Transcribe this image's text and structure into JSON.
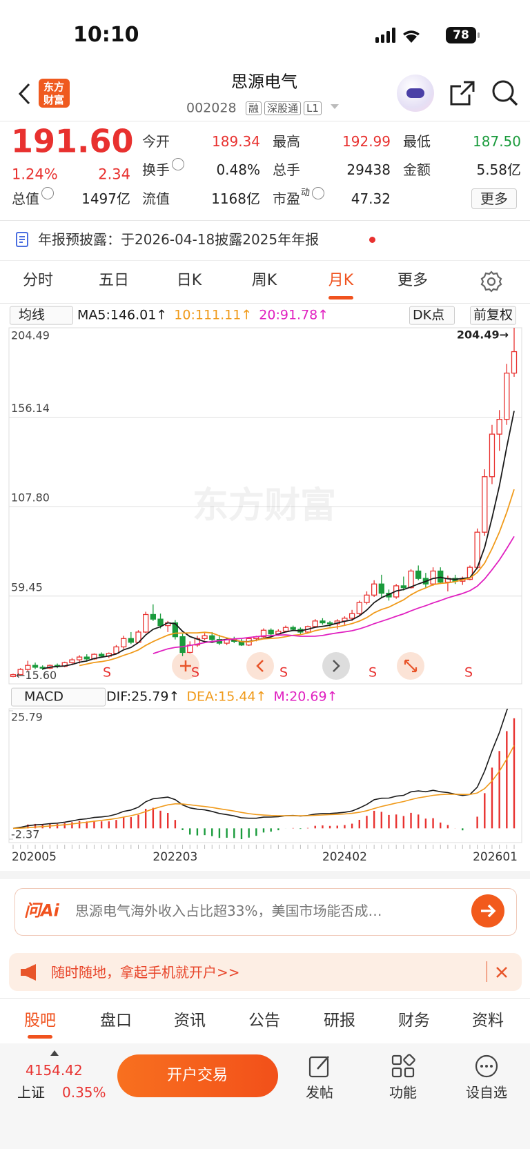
{
  "status_bar": {
    "time": "10:10",
    "battery": "78"
  },
  "header": {
    "logo": [
      "东方",
      "财富"
    ],
    "title": "思源电气",
    "code": "002028",
    "badges": [
      "融",
      "深股通",
      "L1"
    ]
  },
  "quote": {
    "price": "191.60",
    "change_pct": "1.24%",
    "change": "2.34",
    "fields": [
      {
        "label": "今开",
        "value": "189.34",
        "color": "#e8312f"
      },
      {
        "label": "最高",
        "value": "192.99",
        "color": "#e8312f"
      },
      {
        "label": "最低",
        "value": "187.50",
        "color": "#1a9b3c"
      },
      {
        "label": "换手",
        "value": "0.48%",
        "info": true
      },
      {
        "label": "总手",
        "value": "29438"
      },
      {
        "label": "金额",
        "value": "5.58亿"
      },
      {
        "label": "总值",
        "value": "1497亿",
        "info": true
      },
      {
        "label": "流值",
        "value": "1168亿"
      },
      {
        "label": "市盈",
        "sup": "动",
        "value": "47.32",
        "info": true
      }
    ],
    "more_button": "更多"
  },
  "notice": "年报预披露：于2026-04-18披露2025年年报",
  "tabs": [
    "分时",
    "五日",
    "日K",
    "周K",
    "月K",
    "更多"
  ],
  "active_tab": 4,
  "indicators": {
    "ma_selector": "均线",
    "ma": [
      "MA5:146.01↑",
      "10:111.11↑",
      "20:91.78↑"
    ],
    "dk": "DK点",
    "adjust": "前复权",
    "macd_selector": "MACD",
    "macd": [
      "DIF:25.79↑",
      "DEA:15.44↑",
      "M:20.69↑"
    ]
  },
  "watermark": "东方财富",
  "signals": [
    "S",
    "S",
    "S",
    "S",
    "S"
  ],
  "chart_data": [
    {
      "type": "candlestick",
      "categories": [
        "202005",
        null,
        null,
        null,
        null,
        null,
        null,
        null,
        null,
        null,
        null,
        null,
        null,
        null,
        null,
        null,
        null,
        null,
        null,
        null,
        null,
        null,
        "202203",
        null,
        null,
        null,
        null,
        null,
        null,
        null,
        null,
        null,
        null,
        null,
        null,
        null,
        null,
        null,
        null,
        null,
        null,
        null,
        null,
        null,
        null,
        "202402",
        null,
        null,
        null,
        null,
        null,
        null,
        null,
        null,
        null,
        null,
        null,
        null,
        null,
        null,
        null,
        null,
        null,
        null,
        null,
        null,
        null,
        null,
        "202601"
      ],
      "open": [
        16,
        17,
        19.8,
        22,
        21,
        20.5,
        22,
        21.5,
        23.5,
        25,
        26.5,
        25.5,
        28,
        27,
        28.5,
        32,
        36.5,
        34.5,
        40,
        49.5,
        47,
        43.5,
        45,
        37.5,
        29,
        33,
        36.5,
        38,
        36,
        34,
        36,
        35,
        33,
        36.5,
        37.5,
        41,
        39,
        40.5,
        42.5,
        41.5,
        40,
        43,
        46,
        45,
        44.5,
        46,
        47.5,
        50,
        56,
        60,
        66,
        61,
        59,
        65,
        64,
        73,
        69,
        66,
        73,
        67,
        69,
        67.5,
        68.5,
        75,
        94,
        124,
        147,
        155,
        180
      ],
      "high": [
        17.5,
        20.5,
        24.5,
        23.5,
        22,
        22.5,
        23,
        24,
        26,
        27.5,
        28,
        28.5,
        29,
        29,
        33,
        38,
        40,
        41,
        51,
        55,
        50,
        46,
        46.5,
        39,
        35,
        38,
        39.5,
        40,
        38.5,
        37,
        37.5,
        36.5,
        37,
        38,
        42,
        42,
        41.5,
        43.5,
        43.5,
        42.5,
        43.5,
        47,
        47.5,
        46,
        47,
        48.5,
        52,
        57,
        62,
        68,
        71,
        63,
        66,
        70,
        74,
        76,
        72,
        75,
        75,
        70.5,
        71,
        70,
        76,
        96,
        128,
        152,
        160,
        185,
        204.49
      ],
      "low": [
        15.6,
        16.5,
        19,
        20,
        19.5,
        20,
        20.5,
        21,
        22.5,
        23,
        24,
        25,
        26.5,
        26,
        28,
        31,
        33.5,
        34,
        39.5,
        46,
        42,
        40,
        36,
        27,
        28.5,
        32,
        35.5,
        35,
        33,
        33,
        34,
        32.5,
        32.5,
        35,
        37,
        38,
        38,
        40,
        40.5,
        39,
        39.5,
        42.5,
        44,
        43,
        41.5,
        44,
        46,
        49,
        55,
        59,
        58.5,
        57,
        58,
        62.5,
        63.5,
        68,
        64,
        65,
        66,
        62,
        66,
        65.5,
        68,
        74,
        92,
        120,
        138,
        152,
        178
      ],
      "close": [
        17,
        19.8,
        22,
        21,
        20.5,
        22,
        21.5,
        23.5,
        25,
        26.5,
        25.5,
        28,
        27,
        28.5,
        32,
        36.5,
        34.5,
        40,
        49.5,
        47,
        43.5,
        45,
        37.5,
        29,
        33,
        36.5,
        38,
        36,
        34,
        36,
        35,
        33,
        36.5,
        37.5,
        41,
        39,
        40.5,
        42.5,
        41.5,
        40,
        43,
        46,
        45,
        44.5,
        46,
        47.5,
        50,
        56,
        60,
        66,
        61,
        59,
        65,
        64,
        73,
        69,
        66,
        73,
        67,
        69,
        67.5,
        68.5,
        75,
        94,
        124,
        147,
        155,
        180,
        191.6
      ],
      "ylim": [
        12,
        204.49
      ],
      "yticks": [
        59.45,
        {
          "value": 107.8,
          "label": "107.80"
        },
        156.14,
        204.49
      ],
      "grid": true,
      "annotations": {
        "max": "204.49→",
        "min": "←15.60"
      },
      "up_color": "#e8312f",
      "down_color": "#1a9b3c",
      "ma_periods": [
        5,
        10,
        20
      ],
      "ma_colors": [
        "#1a1a1a",
        "#f09a1a",
        "#e020c0"
      ]
    },
    {
      "type": "macd",
      "ylim": [
        -2.37,
        25.79
      ],
      "yticks": [
        25.79,
        -2.37
      ],
      "colors": {
        "dif": "#1a1a1a",
        "dea": "#f09a1a",
        "up": "#e8312f",
        "down": "#1a9b3c"
      }
    }
  ],
  "ai_bar": {
    "brand": "问Ai",
    "text": "思源电气海外收入占比超33%，美国市场能否成…"
  },
  "banner": "随时随地，拿起手机就开户>>",
  "bottom_tabs": [
    "股吧",
    "盘口",
    "资讯",
    "公告",
    "研报",
    "财务",
    "资料"
  ],
  "active_bottom_tab": 0,
  "index_quote": {
    "value": "4154.42",
    "name": "上证",
    "change": "0.35%"
  },
  "trade_button": "开户交易",
  "actions": [
    "发帖",
    "功能",
    "设自选"
  ]
}
